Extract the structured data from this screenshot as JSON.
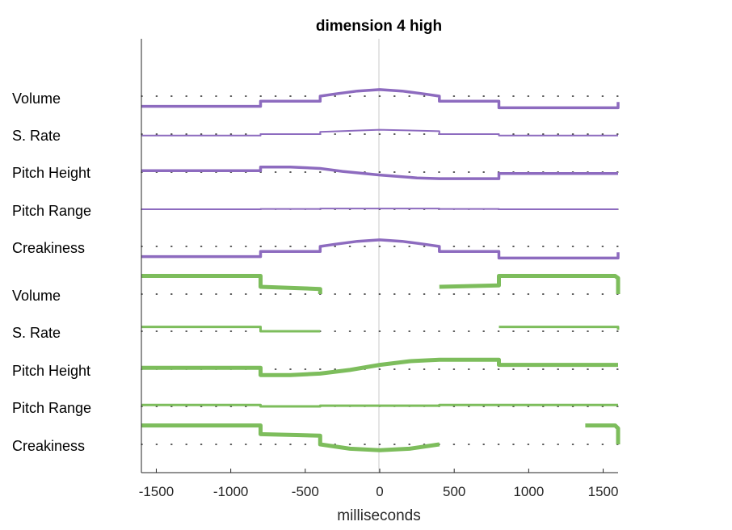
{
  "chart_data": {
    "type": "line",
    "title": "dimension  4 high",
    "xlabel": "milliseconds",
    "xlim": [
      -1600,
      1600
    ],
    "xticks": [
      -1500,
      -1000,
      -500,
      0,
      500,
      1000,
      1500
    ],
    "xtick_labels": [
      "-1500",
      "-1000",
      "-500",
      "0",
      "500",
      "1000",
      "1500"
    ],
    "grid": false,
    "groups": [
      {
        "color": "#8d6bbf",
        "rows": [
          {
            "label": "Volume",
            "points": [
              [
                -1600,
                -0.7
              ],
              [
                -800,
                -0.7
              ],
              [
                -800,
                -0.35
              ],
              [
                -400,
                -0.35
              ],
              [
                -400,
                0.0
              ],
              [
                -300,
                0.15
              ],
              [
                -150,
                0.35
              ],
              [
                0,
                0.45
              ],
              [
                150,
                0.35
              ],
              [
                300,
                0.15
              ],
              [
                400,
                0.0
              ],
              [
                400,
                -0.35
              ],
              [
                800,
                -0.35
              ],
              [
                800,
                -0.8
              ],
              [
                1600,
                -0.8
              ],
              [
                1600,
                -0.4
              ]
            ]
          },
          {
            "label": "S. Rate",
            "points": [
              [
                -1600,
                -0.1
              ],
              [
                -800,
                -0.1
              ],
              [
                -800,
                0.0
              ],
              [
                -400,
                0.0
              ],
              [
                -400,
                0.15
              ],
              [
                0,
                0.3
              ],
              [
                400,
                0.2
              ],
              [
                400,
                0.0
              ],
              [
                800,
                0.0
              ],
              [
                800,
                -0.1
              ],
              [
                1600,
                -0.1
              ]
            ]
          },
          {
            "label": "Pitch Height",
            "points": [
              [
                -1600,
                0.1
              ],
              [
                -800,
                0.1
              ],
              [
                -800,
                0.35
              ],
              [
                -600,
                0.35
              ],
              [
                -400,
                0.25
              ],
              [
                -250,
                0.05
              ],
              [
                0,
                -0.2
              ],
              [
                250,
                -0.4
              ],
              [
                400,
                -0.45
              ],
              [
                800,
                -0.45
              ],
              [
                800,
                -0.1
              ],
              [
                1600,
                -0.1
              ]
            ]
          },
          {
            "label": "Pitch Range",
            "points": [
              [
                -1600,
                0.0
              ],
              [
                -800,
                0.0
              ],
              [
                -800,
                0.02
              ],
              [
                -400,
                0.02
              ],
              [
                -400,
                0.05
              ],
              [
                400,
                0.05
              ],
              [
                400,
                0.02
              ],
              [
                800,
                0.02
              ],
              [
                800,
                0.0
              ],
              [
                1600,
                0.0
              ]
            ]
          },
          {
            "label": "Creakiness",
            "points": [
              [
                -1600,
                -0.7
              ],
              [
                -800,
                -0.7
              ],
              [
                -800,
                -0.35
              ],
              [
                -400,
                -0.35
              ],
              [
                -400,
                0.0
              ],
              [
                -300,
                0.15
              ],
              [
                -150,
                0.35
              ],
              [
                0,
                0.45
              ],
              [
                150,
                0.35
              ],
              [
                300,
                0.15
              ],
              [
                400,
                0.0
              ],
              [
                400,
                -0.35
              ],
              [
                800,
                -0.35
              ],
              [
                800,
                -0.8
              ],
              [
                1600,
                -0.8
              ],
              [
                1600,
                -0.4
              ]
            ]
          }
        ]
      },
      {
        "color": "#7dbd5c",
        "rows": [
          {
            "label": "Volume",
            "segments": [
              [
                [
                  -1600,
                  1.25
                ],
                [
                  -800,
                  1.25
                ],
                [
                  -800,
                  0.5
                ],
                [
                  -400,
                  0.35
                ],
                [
                  -400,
                  0.0
                ]
              ],
              [
                [
                  400,
                  0.5
                ],
                [
                  800,
                  0.6
                ],
                [
                  800,
                  1.25
                ],
                [
                  1580,
                  1.25
                ],
                [
                  1600,
                  1.1
                ],
                [
                  1600,
                  0.0
                ]
              ]
            ]
          },
          {
            "label": "S. Rate",
            "segments": [
              [
                [
                  -1600,
                  0.3
                ],
                [
                  -800,
                  0.3
                ],
                [
                  -800,
                  0.0
                ],
                [
                  -400,
                  0.0
                ]
              ],
              [
                [
                  800,
                  0.3
                ],
                [
                  1600,
                  0.3
                ],
                [
                  1600,
                  0.1
                ]
              ]
            ]
          },
          {
            "label": "Pitch Height",
            "points": [
              [
                -1600,
                0.1
              ],
              [
                -800,
                0.1
              ],
              [
                -800,
                -0.4
              ],
              [
                -600,
                -0.4
              ],
              [
                -400,
                -0.3
              ],
              [
                -200,
                -0.05
              ],
              [
                0,
                0.3
              ],
              [
                200,
                0.55
              ],
              [
                400,
                0.65
              ],
              [
                800,
                0.65
              ],
              [
                800,
                0.3
              ],
              [
                1600,
                0.3
              ]
            ]
          },
          {
            "label": "Pitch Range",
            "points": [
              [
                -1600,
                0.1
              ],
              [
                -800,
                0.1
              ],
              [
                -800,
                0.0
              ],
              [
                -400,
                0.0
              ],
              [
                -400,
                0.05
              ],
              [
                400,
                0.05
              ],
              [
                400,
                0.1
              ],
              [
                1600,
                0.1
              ]
            ]
          },
          {
            "label": "Creakiness",
            "segments": [
              [
                [
                  -1600,
                  1.3
                ],
                [
                  -800,
                  1.3
                ],
                [
                  -800,
                  0.7
                ],
                [
                  -400,
                  0.6
                ],
                [
                  -400,
                  0.0
                ],
                [
                  -200,
                  -0.3
                ],
                [
                  0,
                  -0.4
                ],
                [
                  200,
                  -0.3
                ],
                [
                  400,
                  0.0
                ]
              ],
              [
                [
                  1380,
                  1.3
                ],
                [
                  1580,
                  1.3
                ],
                [
                  1600,
                  1.1
                ],
                [
                  1600,
                  0.0
                ]
              ]
            ]
          }
        ]
      }
    ]
  }
}
